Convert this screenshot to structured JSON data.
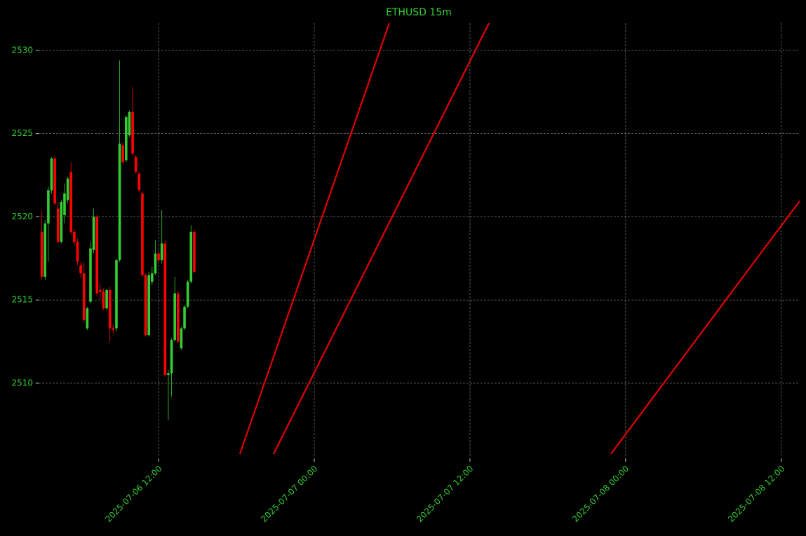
{
  "chart_data": {
    "type": "candlestick",
    "title": "ETHUSD 15m",
    "x": [
      "2025-07-06 03:00",
      "2025-07-06 03:15",
      "2025-07-06 03:30",
      "2025-07-06 03:45",
      "2025-07-06 04:00",
      "2025-07-06 04:15",
      "2025-07-06 04:30",
      "2025-07-06 04:45",
      "2025-07-06 05:00",
      "2025-07-06 05:15",
      "2025-07-06 05:30",
      "2025-07-06 05:45",
      "2025-07-06 06:00",
      "2025-07-06 06:15",
      "2025-07-06 06:30",
      "2025-07-06 06:45",
      "2025-07-06 07:00",
      "2025-07-06 07:15",
      "2025-07-06 07:30",
      "2025-07-06 07:45",
      "2025-07-06 08:00",
      "2025-07-06 08:15",
      "2025-07-06 08:30",
      "2025-07-06 08:45",
      "2025-07-06 09:00",
      "2025-07-06 09:15",
      "2025-07-06 09:30",
      "2025-07-06 09:45",
      "2025-07-06 10:00",
      "2025-07-06 10:15",
      "2025-07-06 10:30",
      "2025-07-06 10:45",
      "2025-07-06 11:00",
      "2025-07-06 11:15",
      "2025-07-06 11:30",
      "2025-07-06 11:45",
      "2025-07-06 12:00",
      "2025-07-06 12:15",
      "2025-07-06 12:30",
      "2025-07-06 12:45",
      "2025-07-06 13:00",
      "2025-07-06 13:15",
      "2025-07-06 13:30",
      "2025-07-06 13:45",
      "2025-07-06 14:00",
      "2025-07-06 14:15",
      "2025-07-06 14:30",
      "2025-07-06 14:45"
    ],
    "open": [
      2519.1,
      2516.4,
      2519.6,
      2521.6,
      2523.5,
      2520.5,
      2518.5,
      2520.1,
      2521.0,
      2522.7,
      2519.1,
      2518.5,
      2517.1,
      2516.6,
      2513.3,
      2514.9,
      2518.0,
      2520.0,
      2515.6,
      2515.5,
      2514.5,
      2515.6,
      2513.3,
      2513.3,
      2517.4,
      2524.3,
      2523.4,
      2524.9,
      2526.3,
      2523.6,
      2522.6,
      2521.4,
      2516.5,
      2512.9,
      2516.1,
      2516.6,
      2517.8,
      2517.4,
      2518.4,
      2510.5,
      2510.6,
      2512.6,
      2515.4,
      2512.1,
      2513.3,
      2514.6,
      2516.1,
      2519.1
    ],
    "high": [
      2520.4,
      2519.8,
      2521.8,
      2523.6,
      2523.6,
      2520.9,
      2521.0,
      2522.0,
      2522.4,
      2523.3,
      2519.3,
      2518.7,
      2517.3,
      2517.3,
      2514.6,
      2518.5,
      2520.5,
      2520.1,
      2516.0,
      2515.7,
      2515.7,
      2515.8,
      2513.5,
      2517.5,
      2529.4,
      2524.5,
      2526.1,
      2526.4,
      2527.8,
      2523.7,
      2522.7,
      2521.5,
      2516.6,
      2516.7,
      2517.0,
      2518.6,
      2518.0,
      2520.4,
      2518.6,
      2510.8,
      2512.7,
      2516.4,
      2515.5,
      2513.4,
      2514.7,
      2516.2,
      2519.5,
      2519.2
    ],
    "low": [
      2516.2,
      2516.2,
      2517.3,
      2521.4,
      2520.7,
      2518.4,
      2518.4,
      2519.6,
      2520.8,
      2518.9,
      2518.3,
      2517.1,
      2516.3,
      2513.6,
      2513.2,
      2514.8,
      2517.8,
      2515.2,
      2515.0,
      2514.4,
      2514.4,
      2512.5,
      2513.0,
      2513.1,
      2517.3,
      2523.1,
      2523.3,
      2524.8,
      2523.7,
      2522.6,
      2521.5,
      2516.4,
      2512.8,
      2512.8,
      2515.9,
      2516.5,
      2517.2,
      2517.2,
      2510.4,
      2507.8,
      2509.2,
      2512.5,
      2512.4,
      2512.0,
      2513.2,
      2514.5,
      2516.0,
      2516.6
    ],
    "close": [
      2516.4,
      2519.6,
      2521.6,
      2523.5,
      2520.8,
      2518.5,
      2520.9,
      2521.4,
      2522.3,
      2519.1,
      2518.5,
      2517.3,
      2516.6,
      2513.8,
      2514.5,
      2518.1,
      2520.0,
      2515.4,
      2515.5,
      2514.5,
      2515.6,
      2513.3,
      2513.2,
      2517.4,
      2524.4,
      2523.3,
      2526.0,
      2526.3,
      2523.8,
      2522.7,
      2521.6,
      2516.5,
      2512.9,
      2516.5,
      2516.6,
      2517.8,
      2517.4,
      2518.4,
      2510.5,
      2510.6,
      2512.6,
      2515.4,
      2512.5,
      2513.3,
      2514.6,
      2516.1,
      2519.1,
      2516.7
    ],
    "up_color": "#32cd32",
    "down_color": "#ff0000",
    "lines": [
      {
        "color": "#e00000",
        "x": [
          "2025-07-06 18:16",
          "2025-07-07 05:47"
        ],
        "values": [
          2505.75,
          2531.64
        ]
      },
      {
        "color": "#e00000",
        "x": [
          "2025-07-06 20:52",
          "2025-07-07 13:28"
        ],
        "values": [
          2505.75,
          2531.64
        ]
      },
      {
        "color": "#e00000",
        "x": [
          "2025-07-07 22:52",
          "2025-07-08 13:25"
        ],
        "values": [
          2505.75,
          2520.95
        ]
      }
    ],
    "xlim": [
      "2025-07-06 02:45",
      "2025-07-08 13:25"
    ],
    "xticks": [
      "2025-07-06 12:00",
      "2025-07-07 00:00",
      "2025-07-07 12:00",
      "2025-07-08 00:00",
      "2025-07-08 12:00"
    ],
    "ylim": [
      2505.45,
      2531.64
    ],
    "yticks": [
      2510,
      2515,
      2520,
      2525,
      2530
    ],
    "grid": true
  }
}
